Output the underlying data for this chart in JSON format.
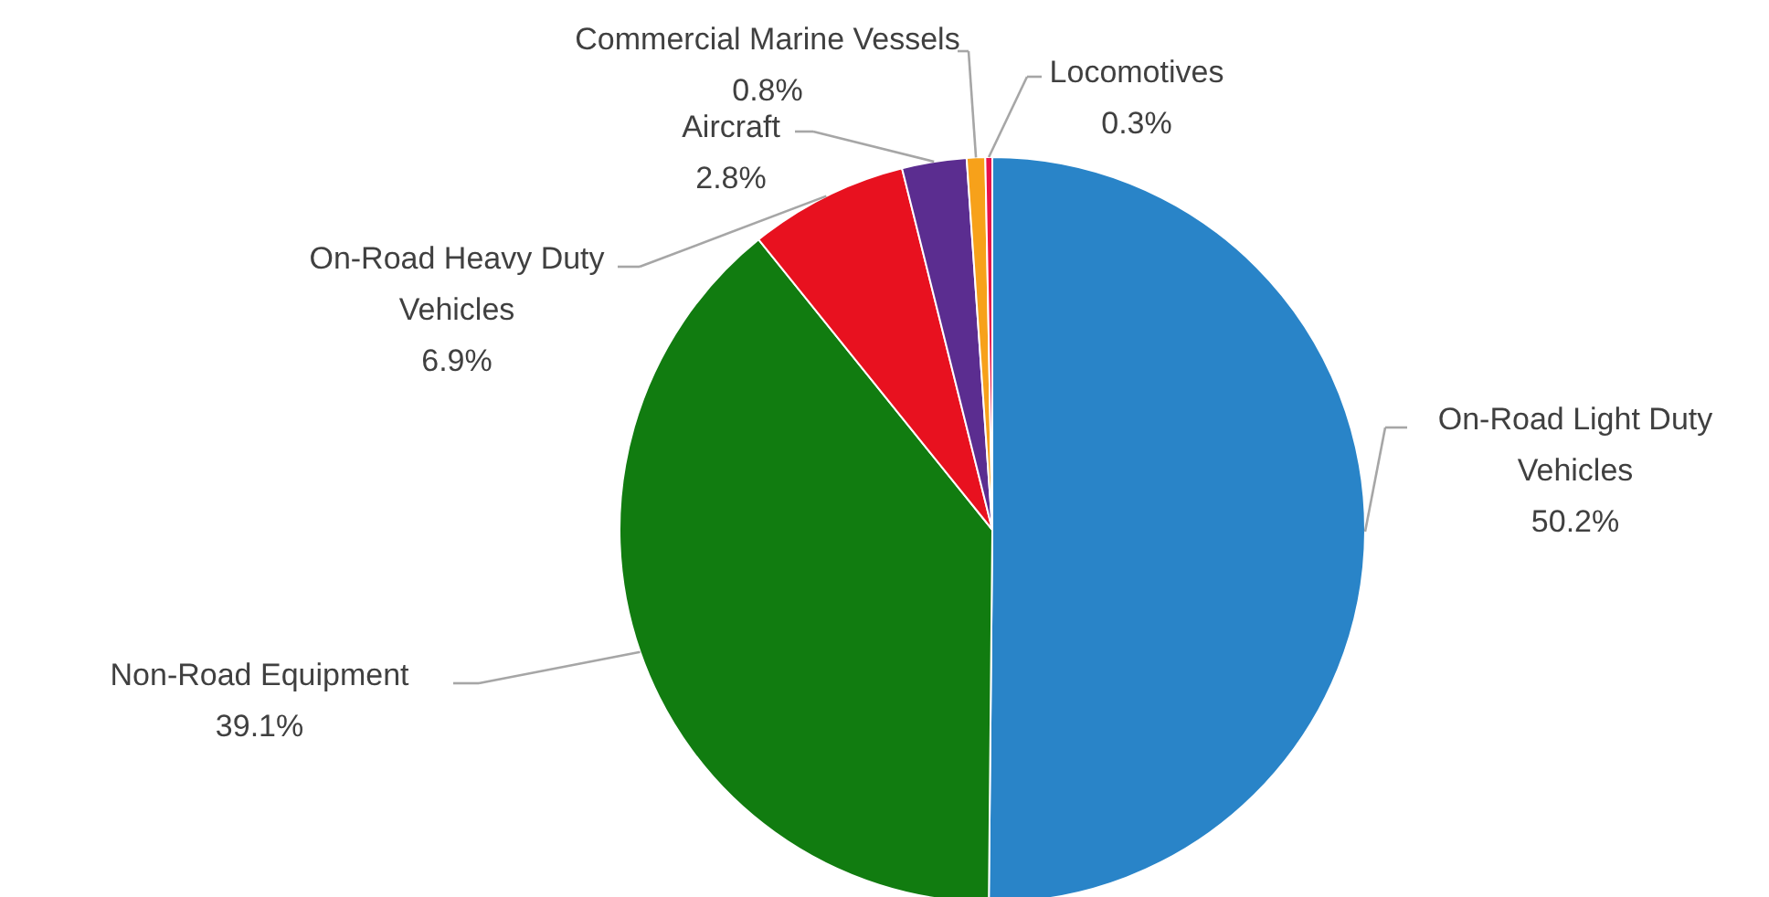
{
  "chart_data": {
    "type": "pie",
    "categories": [
      "On-Road Light Duty Vehicles",
      "Non-Road Equipment",
      "On-Road Heavy Duty Vehicles",
      "Aircraft",
      "Commercial Marine Vessels",
      "Locomotives"
    ],
    "values": [
      50.2,
      39.1,
      6.9,
      2.8,
      0.8,
      0.3
    ],
    "value_labels": [
      "50.2%",
      "39.1%",
      "6.9%",
      "2.8%",
      "0.8%",
      "0.3%"
    ],
    "colors": [
      "#2984c8",
      "#117c10",
      "#e8111f",
      "#5b2d90",
      "#f7a11a",
      "#e8114a"
    ],
    "legend": false
  }
}
